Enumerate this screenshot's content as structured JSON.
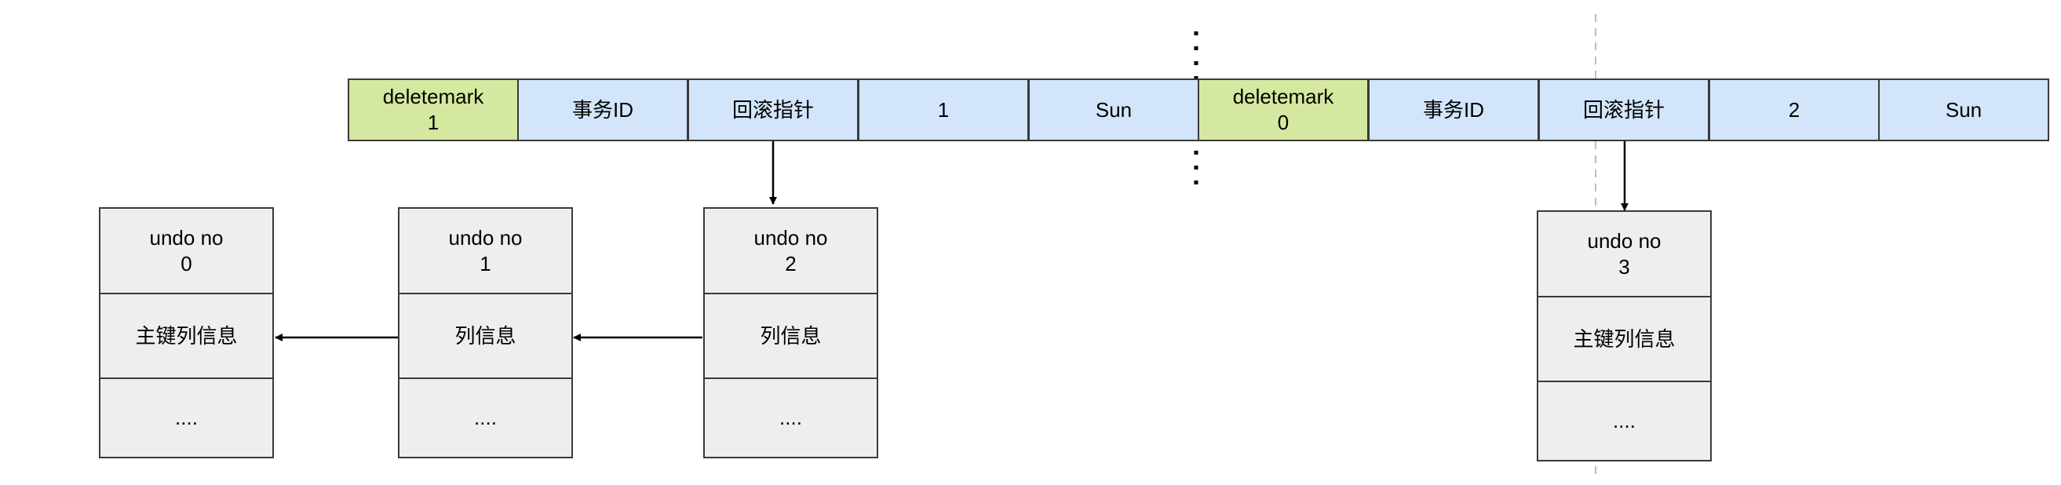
{
  "record_row_1": {
    "cells": [
      "deletemark\n1",
      "事务ID",
      "回滚指针",
      "1",
      "Sun"
    ]
  },
  "record_row_2": {
    "cells": [
      "deletemark\n0",
      "事务ID",
      "回滚指针",
      "2",
      "Sun"
    ]
  },
  "undo_chain_left": [
    {
      "header": "undo no\n0",
      "info": "主键列信息",
      "rest": "...."
    },
    {
      "header": "undo no\n1",
      "info": "列信息",
      "rest": "...."
    },
    {
      "header": "undo no\n2",
      "info": "列信息",
      "rest": "...."
    }
  ],
  "undo_right": {
    "header": "undo no\n3",
    "info": "主键列信息",
    "rest": "...."
  },
  "colors": {
    "deletemark_fill": "#d5e8a0",
    "field_fill": "#d2e5fb",
    "undo_fill": "#eeeeee",
    "stroke": "#3a3a3a",
    "guide_line": "#bdbdbd"
  }
}
